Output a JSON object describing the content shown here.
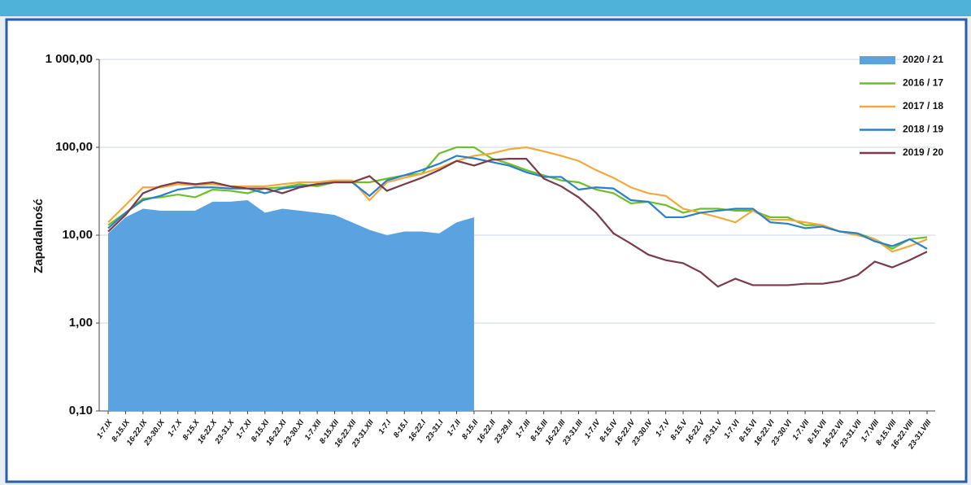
{
  "chart_data": {
    "type": "line",
    "y_label": "Zapadalność",
    "log_scale": true,
    "grid": true,
    "legend": "top-right",
    "categories": [
      "1-7.IX",
      "8-15.IX",
      "16-22.IX",
      "23-30.IX",
      "1-7.X",
      "8-15.X",
      "16-22.X",
      "23-31.X",
      "1-7.XI",
      "8-15.XI",
      "16-22.XI",
      "23-30.XI",
      "1-7.XII",
      "8-15.XII",
      "16-22.XII",
      "23-31.XII",
      "1-7.I",
      "8-15.I",
      "16-22.I",
      "23-31.I",
      "1-7.II",
      "8-15.II",
      "16-22.II",
      "23-29.II",
      "1-7.III",
      "8-15.III",
      "16-22.III",
      "23-31.III",
      "1-7.IV",
      "8-15.IV",
      "16-22.IV",
      "23-30.IV",
      "1-7.V",
      "8-15.V",
      "16-22.V",
      "23-31.V",
      "1-7.VI",
      "8-15.VI",
      "16-22.VI",
      "23-30.VI",
      "1-7.VII",
      "8-15.VII",
      "16-22.VII",
      "23-31.VII",
      "1-7.VIII",
      "8-15.VIII",
      "16-22.VIII",
      "23-31.VIII"
    ],
    "ylim": [
      0.1,
      1000
    ],
    "yticks": [
      {
        "value": 0.1,
        "label": "0,10"
      },
      {
        "value": 1,
        "label": "1,00"
      },
      {
        "value": 10,
        "label": "10,00"
      },
      {
        "value": 100,
        "label": "100,00"
      },
      {
        "value": 1000,
        "label": "1 000,00"
      }
    ],
    "series": [
      {
        "name": "2020 / 21",
        "kind": "area",
        "color": "#5aa3e0",
        "values": [
          10.5,
          16,
          20,
          19,
          19,
          19,
          24,
          24,
          25,
          18,
          20,
          19,
          18,
          17,
          14,
          11.5,
          10,
          11,
          11,
          10.5,
          14,
          16,
          null,
          null,
          null,
          null,
          null,
          null,
          null,
          null,
          null,
          null,
          null,
          null,
          null,
          null,
          null,
          null,
          null,
          null,
          null,
          null,
          null,
          null,
          null,
          null,
          null,
          null
        ]
      },
      {
        "name": "2016 / 17",
        "kind": "line",
        "color": "#6cbf2a",
        "values": [
          13,
          18,
          26,
          27,
          29,
          27,
          33,
          32,
          30,
          34,
          35,
          38,
          36,
          40,
          40,
          40,
          44,
          48,
          50,
          85,
          100,
          100,
          75,
          65,
          55,
          48,
          42,
          40,
          33,
          30,
          23,
          24,
          22,
          18,
          20,
          20,
          19,
          19,
          16,
          16,
          13,
          13,
          11,
          10.5,
          9,
          7,
          9,
          9.5
        ]
      },
      {
        "name": "2017 / 18",
        "kind": "line",
        "color": "#f2a93b",
        "values": [
          14,
          22,
          35,
          35,
          38,
          37,
          38,
          36,
          36,
          36,
          38,
          40,
          40,
          42,
          42,
          25,
          40,
          45,
          50,
          58,
          70,
          80,
          85,
          95,
          100,
          90,
          80,
          70,
          55,
          45,
          35,
          30,
          28,
          20,
          18,
          16,
          14,
          19,
          15,
          15,
          14,
          13,
          11,
          10,
          9,
          6.5,
          7.5,
          9
        ]
      },
      {
        "name": "2018 / 19",
        "kind": "line",
        "color": "#2a7fc9",
        "values": [
          12,
          18,
          25,
          28,
          33,
          35,
          35,
          34,
          34,
          30,
          34,
          36,
          38,
          40,
          40,
          28,
          42,
          48,
          55,
          65,
          80,
          75,
          68,
          62,
          52,
          46,
          46,
          33,
          35,
          34,
          25,
          24,
          16,
          16,
          18,
          19,
          20,
          20,
          14,
          13.5,
          12,
          12.5,
          11,
          10.5,
          8.5,
          7.5,
          9,
          7
        ]
      },
      {
        "name": "2019 / 20",
        "kind": "line",
        "color": "#7a3b4a",
        "values": [
          11,
          17,
          30,
          36,
          40,
          38,
          40,
          36,
          34,
          34,
          30,
          35,
          38,
          40,
          40,
          47,
          32,
          38,
          45,
          55,
          70,
          62,
          72,
          74,
          74,
          44,
          36,
          27,
          18,
          10.5,
          8,
          6,
          5.2,
          4.8,
          3.8,
          2.6,
          3.2,
          2.7,
          2.7,
          2.7,
          2.8,
          2.8,
          3,
          3.5,
          5,
          4.3,
          5.2,
          6.5
        ]
      }
    ]
  }
}
